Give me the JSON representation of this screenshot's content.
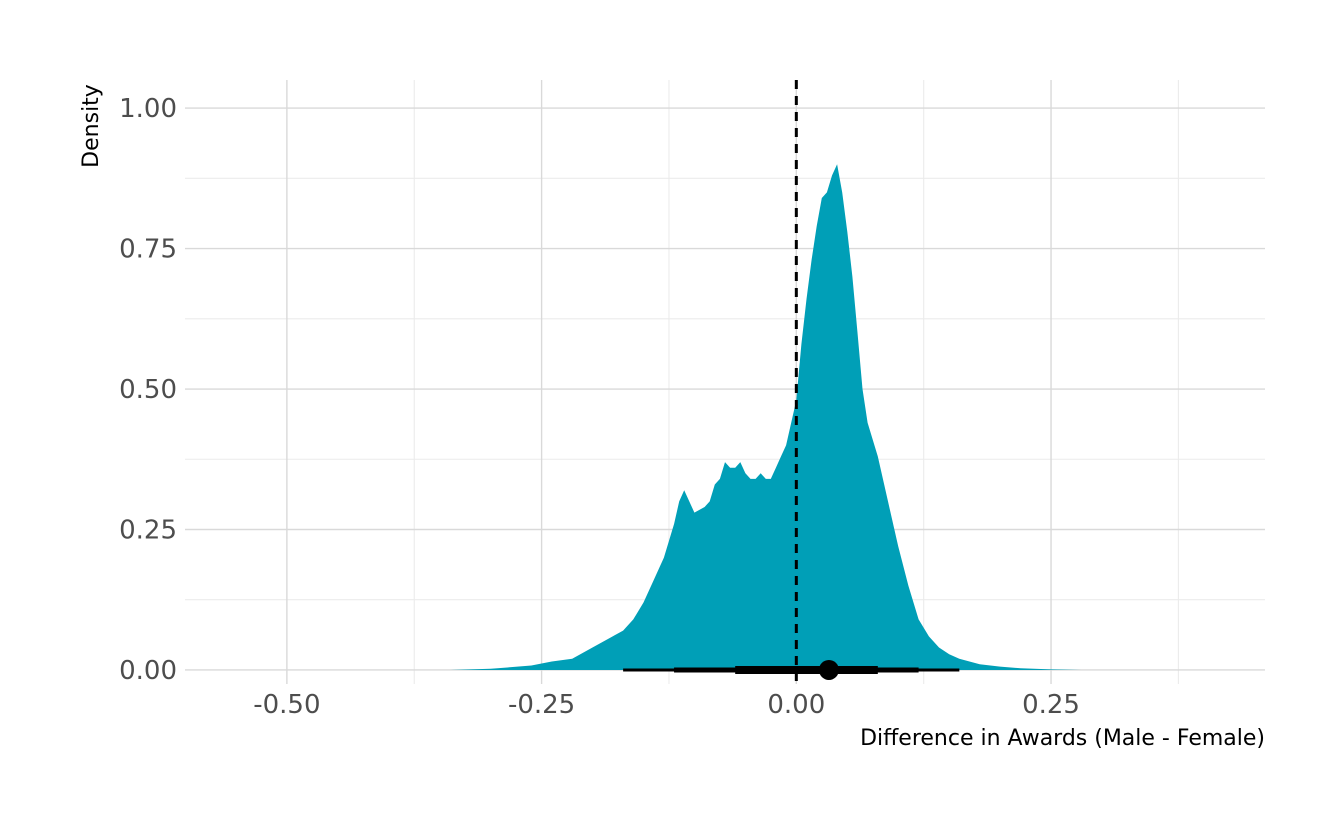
{
  "chart_data": {
    "type": "area",
    "title": "",
    "xlabel": "Difference in Awards (Male - Female)",
    "ylabel": "Density",
    "xlim": [
      -0.6,
      0.46
    ],
    "ylim": [
      -0.025,
      1.05
    ],
    "x_ticks": [
      -0.5,
      -0.25,
      0.0,
      0.25
    ],
    "x_tick_labels": [
      "-0.50",
      "-0.25",
      "0.00",
      "0.25"
    ],
    "y_ticks": [
      0.0,
      0.25,
      0.5,
      0.75,
      1.0
    ],
    "y_tick_labels": [
      "0.00",
      "0.25",
      "0.50",
      "0.75",
      "1.00"
    ],
    "x_minor_ticks": [
      -0.375,
      -0.125,
      0.125,
      0.375
    ],
    "y_minor_ticks": [
      0.125,
      0.375,
      0.625,
      0.875
    ],
    "grid": true,
    "legend": "none",
    "fill_color": "#009fb7",
    "interval_color": "#000000",
    "reference_line": {
      "x": 0.0,
      "style": "dashed"
    },
    "series": [
      {
        "x": [
          -0.34,
          -0.3,
          -0.26,
          -0.24,
          -0.22,
          -0.2,
          -0.19,
          -0.18,
          -0.17,
          -0.16,
          -0.15,
          -0.14,
          -0.13,
          -0.12,
          -0.115,
          -0.11,
          -0.1,
          -0.09,
          -0.085,
          -0.08,
          -0.075,
          -0.07,
          -0.065,
          -0.06,
          -0.055,
          -0.05,
          -0.045,
          -0.04,
          -0.035,
          -0.03,
          -0.025,
          -0.02,
          -0.015,
          -0.01,
          -0.005,
          0.0,
          0.005,
          0.01,
          0.015,
          0.02,
          0.025,
          0.03,
          0.035,
          0.04,
          0.045,
          0.05,
          0.055,
          0.06,
          0.065,
          0.07,
          0.08,
          0.09,
          0.1,
          0.11,
          0.12,
          0.13,
          0.14,
          0.15,
          0.16,
          0.18,
          0.2,
          0.22,
          0.25,
          0.28,
          0.32,
          0.36
        ],
        "y": [
          0.0,
          0.002,
          0.008,
          0.015,
          0.02,
          0.04,
          0.05,
          0.06,
          0.07,
          0.09,
          0.12,
          0.16,
          0.2,
          0.26,
          0.3,
          0.32,
          0.28,
          0.29,
          0.3,
          0.33,
          0.34,
          0.37,
          0.36,
          0.36,
          0.37,
          0.35,
          0.34,
          0.34,
          0.35,
          0.34,
          0.34,
          0.36,
          0.38,
          0.4,
          0.44,
          0.48,
          0.58,
          0.66,
          0.73,
          0.79,
          0.84,
          0.85,
          0.88,
          0.9,
          0.85,
          0.78,
          0.7,
          0.6,
          0.5,
          0.44,
          0.38,
          0.3,
          0.22,
          0.15,
          0.09,
          0.06,
          0.04,
          0.028,
          0.02,
          0.01,
          0.006,
          0.003,
          0.001,
          0.0,
          0.0,
          0.0
        ]
      }
    ],
    "interval": {
      "point": 0.032,
      "thick": [
        -0.06,
        0.08
      ],
      "medium": [
        -0.12,
        0.12
      ],
      "thin": [
        -0.17,
        0.16
      ]
    }
  }
}
